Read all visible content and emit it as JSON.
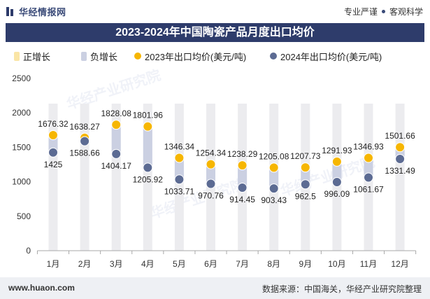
{
  "header": {
    "logo_text": "华经情报网",
    "tagline_left": "专业严谨",
    "tagline_right": "客观科学"
  },
  "watermark": "华经产业研究院",
  "chart_data": {
    "type": "scatter",
    "title": "2023-2024年中国陶瓷产品月度出口均价",
    "categories": [
      "1月",
      "2月",
      "3月",
      "4月",
      "5月",
      "6月",
      "7月",
      "8月",
      "9月",
      "10月",
      "11月",
      "12月"
    ],
    "series": [
      {
        "name": "2023年出口均价(美元/吨)",
        "color": "#f6b602",
        "values": [
          1676.32,
          1638.27,
          1828.08,
          1801.96,
          1346.34,
          1254.34,
          1238.29,
          1205.08,
          1207.73,
          1291.93,
          1346.93,
          1501.66
        ]
      },
      {
        "name": "2024年出口均价(美元/吨)",
        "color": "#5c6b93",
        "values": [
          1425,
          1588.66,
          1404.17,
          1205.92,
          1033.71,
          970.76,
          914.45,
          903.43,
          962.5,
          996.09,
          1061.67,
          1331.49
        ]
      }
    ],
    "growth_legend": {
      "positive": {
        "label": "正增长",
        "color": "#fae5a6"
      },
      "negative": {
        "label": "负增长",
        "color": "#cbd0e2"
      }
    },
    "y_ticks": [
      0,
      500,
      1000,
      1500,
      2000,
      2500
    ],
    "ylim": [
      0,
      2500
    ],
    "grid": false,
    "legend_position": "top-left"
  },
  "footer": {
    "website": "www.huaon.com",
    "source": "数据来源：中国海关，华经产业研究院整理"
  }
}
